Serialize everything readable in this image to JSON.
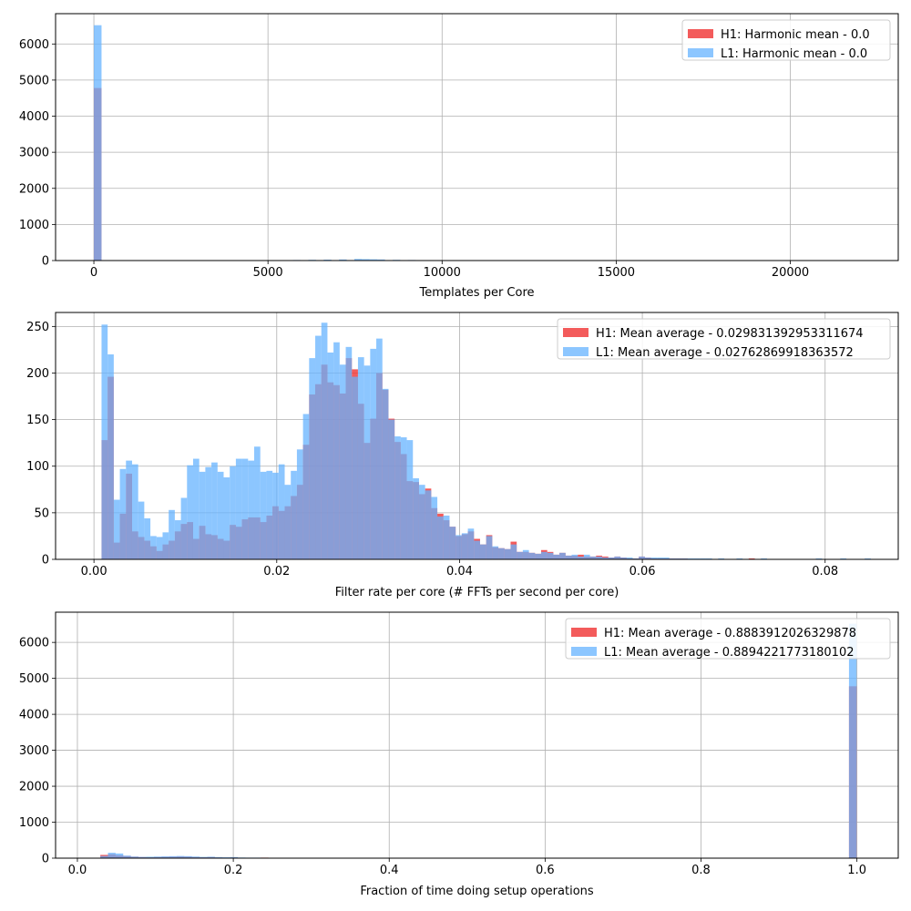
{
  "colors": {
    "h1": "#f03232",
    "l1": "#66b3ff",
    "grid": "#b0b0b0"
  },
  "chart_data": [
    {
      "type": "bar",
      "xlabel": "Templates per Core",
      "ylabel": "",
      "xlim": [
        -1100,
        23100
      ],
      "ylim": [
        0,
        6840
      ],
      "xticks": [
        0,
        5000,
        10000,
        15000,
        20000
      ],
      "xtick_labels": [
        "0",
        "5000",
        "10000",
        "15000",
        "20000"
      ],
      "yticks": [
        0,
        1000,
        2000,
        3000,
        4000,
        5000,
        6000
      ],
      "ytick_labels": [
        "0",
        "1000",
        "2000",
        "3000",
        "4000",
        "5000",
        "6000"
      ],
      "grid": true,
      "legend_position": "top-right",
      "bin_width": 220,
      "series": [
        {
          "name": "H1: Harmonic mean  - 0.0",
          "color_key": "h1",
          "bins": [
            {
              "x": 0,
              "y": 4780
            }
          ]
        },
        {
          "name": "L1: Harmonic mean  - 0.0",
          "color_key": "l1",
          "bins": [
            {
              "x": 0,
              "y": 6520
            },
            {
              "x": 2860,
              "y": 10
            },
            {
              "x": 3080,
              "y": 12
            },
            {
              "x": 5280,
              "y": 10
            },
            {
              "x": 5720,
              "y": 15
            },
            {
              "x": 6160,
              "y": 20
            },
            {
              "x": 6600,
              "y": 25
            },
            {
              "x": 7040,
              "y": 30
            },
            {
              "x": 7480,
              "y": 45
            },
            {
              "x": 7700,
              "y": 40
            },
            {
              "x": 7920,
              "y": 35
            },
            {
              "x": 8140,
              "y": 30
            },
            {
              "x": 8580,
              "y": 20
            },
            {
              "x": 9020,
              "y": 15
            },
            {
              "x": 9240,
              "y": 10
            }
          ]
        }
      ]
    },
    {
      "type": "bar",
      "xlabel": "Filter rate per core (# FFTs per second per core)",
      "ylabel": "",
      "xlim": [
        -0.0042,
        0.088
      ],
      "ylim": [
        0,
        265
      ],
      "xticks": [
        0,
        0.02,
        0.04,
        0.06,
        0.08
      ],
      "xtick_labels": [
        "0.00",
        "0.02",
        "0.04",
        "0.06",
        "0.08"
      ],
      "yticks": [
        0,
        50,
        100,
        150,
        200,
        250
      ],
      "ytick_labels": [
        "0",
        "50",
        "100",
        "150",
        "200",
        "250"
      ],
      "grid": true,
      "legend_position": "top-right",
      "bin_start": 0.00083,
      "bin_width": 0.000668,
      "series": [
        {
          "name": "H1: Mean average - 0.029831392953311674",
          "color_key": "h1",
          "values": [
            128,
            196,
            18,
            49,
            92,
            30,
            24,
            20,
            14,
            9,
            16,
            20,
            30,
            38,
            40,
            22,
            36,
            27,
            26,
            22,
            20,
            37,
            35,
            43,
            45,
            45,
            40,
            47,
            57,
            52,
            57,
            68,
            80,
            123,
            177,
            188,
            209,
            190,
            187,
            178,
            216,
            204,
            167,
            125,
            151,
            200,
            182,
            151,
            126,
            113,
            84,
            83,
            70,
            76,
            55,
            49,
            42,
            35,
            25,
            27,
            30,
            22,
            16,
            26,
            13,
            12,
            11,
            19,
            8,
            8,
            7,
            6,
            10,
            8,
            5,
            7,
            4,
            4,
            5,
            3,
            3,
            4,
            3,
            2,
            3,
            2,
            1,
            1,
            3,
            2,
            1,
            1,
            1,
            1,
            1,
            1,
            0,
            0,
            0,
            0,
            0,
            0,
            0,
            0,
            0,
            0,
            1,
            0,
            0,
            0,
            0,
            0,
            0,
            0,
            0,
            0,
            0,
            0,
            0,
            0,
            0,
            0,
            0,
            0,
            0,
            0
          ]
        },
        {
          "name": "L1: Mean average - 0.02762869918363572",
          "color_key": "l1",
          "values": [
            252,
            220,
            64,
            97,
            106,
            102,
            62,
            44,
            25,
            24,
            29,
            53,
            42,
            66,
            101,
            108,
            94,
            99,
            104,
            94,
            88,
            100,
            108,
            108,
            106,
            121,
            94,
            95,
            93,
            102,
            80,
            95,
            118,
            156,
            216,
            240,
            254,
            222,
            233,
            209,
            228,
            196,
            217,
            208,
            226,
            237,
            183,
            150,
            132,
            131,
            128,
            87,
            80,
            74,
            67,
            46,
            47,
            35,
            26,
            28,
            33,
            20,
            16,
            25,
            14,
            12,
            11,
            16,
            8,
            10,
            7,
            6,
            8,
            7,
            5,
            7,
            4,
            5,
            3,
            5,
            3,
            3,
            2,
            2,
            3,
            2,
            2,
            1,
            3,
            2,
            2,
            2,
            2,
            1,
            1,
            1,
            1,
            1,
            1,
            1,
            0,
            1,
            0,
            0,
            1,
            0,
            0,
            0,
            1,
            0,
            0,
            0,
            0,
            0,
            0,
            0,
            0,
            1,
            0,
            0,
            0,
            1,
            0,
            0,
            0,
            1
          ]
        }
      ]
    },
    {
      "type": "bar",
      "xlabel": "Fraction of time doing setup operations",
      "ylabel": "",
      "xlim": [
        -0.028,
        1.053
      ],
      "ylim": [
        0,
        6840
      ],
      "xticks": [
        0,
        0.2,
        0.4,
        0.6,
        0.8,
        1.0
      ],
      "xtick_labels": [
        "0.0",
        "0.2",
        "0.4",
        "0.6",
        "0.8",
        "1.0"
      ],
      "yticks": [
        0,
        1000,
        2000,
        3000,
        4000,
        5000,
        6000
      ],
      "ytick_labels": [
        "0",
        "1000",
        "2000",
        "3000",
        "4000",
        "5000",
        "6000"
      ],
      "grid": true,
      "legend_position": "top-right",
      "bin_width": 0.0098,
      "series": [
        {
          "name": "H1: Mean average - 0.8883912026329878",
          "color_key": "h1",
          "bins": [
            {
              "x": 0.0294,
              "y": 90
            },
            {
              "x": 0.0392,
              "y": 110
            },
            {
              "x": 0.049,
              "y": 80
            },
            {
              "x": 0.0588,
              "y": 60
            },
            {
              "x": 0.0686,
              "y": 40
            },
            {
              "x": 0.0784,
              "y": 30
            },
            {
              "x": 0.0882,
              "y": 25
            },
            {
              "x": 0.098,
              "y": 30
            },
            {
              "x": 0.1078,
              "y": 35
            },
            {
              "x": 0.1176,
              "y": 40
            },
            {
              "x": 0.1274,
              "y": 45
            },
            {
              "x": 0.1372,
              "y": 40
            },
            {
              "x": 0.147,
              "y": 30
            },
            {
              "x": 0.1568,
              "y": 25
            },
            {
              "x": 0.1666,
              "y": 30
            },
            {
              "x": 0.1764,
              "y": 20
            },
            {
              "x": 0.1862,
              "y": 15
            },
            {
              "x": 0.196,
              "y": 20
            },
            {
              "x": 0.2058,
              "y": 12
            },
            {
              "x": 0.2156,
              "y": 10
            },
            {
              "x": 0.2254,
              "y": 12
            },
            {
              "x": 0.2352,
              "y": 15
            },
            {
              "x": 0.245,
              "y": 10
            },
            {
              "x": 0.2548,
              "y": 8
            },
            {
              "x": 0.2646,
              "y": 10
            },
            {
              "x": 0.2842,
              "y": 6
            },
            {
              "x": 0.9898,
              "y": 4780
            }
          ]
        },
        {
          "name": "L1: Mean average - 0.8894221773180102",
          "color_key": "l1",
          "bins": [
            {
              "x": 0.0294,
              "y": 60
            },
            {
              "x": 0.0392,
              "y": 150
            },
            {
              "x": 0.049,
              "y": 130
            },
            {
              "x": 0.0588,
              "y": 70
            },
            {
              "x": 0.0686,
              "y": 45
            },
            {
              "x": 0.0784,
              "y": 35
            },
            {
              "x": 0.0882,
              "y": 40
            },
            {
              "x": 0.098,
              "y": 45
            },
            {
              "x": 0.1078,
              "y": 50
            },
            {
              "x": 0.1176,
              "y": 55
            },
            {
              "x": 0.1274,
              "y": 60
            },
            {
              "x": 0.1372,
              "y": 55
            },
            {
              "x": 0.147,
              "y": 45
            },
            {
              "x": 0.1568,
              "y": 35
            },
            {
              "x": 0.1666,
              "y": 40
            },
            {
              "x": 0.1764,
              "y": 30
            },
            {
              "x": 0.1862,
              "y": 25
            },
            {
              "x": 0.196,
              "y": 30
            },
            {
              "x": 0.2058,
              "y": 18
            },
            {
              "x": 0.2156,
              "y": 15
            },
            {
              "x": 0.2254,
              "y": 15
            },
            {
              "x": 0.2352,
              "y": 12
            },
            {
              "x": 0.245,
              "y": 12
            },
            {
              "x": 0.2548,
              "y": 10
            },
            {
              "x": 0.2646,
              "y": 12
            },
            {
              "x": 0.2744,
              "y": 8
            },
            {
              "x": 0.2842,
              "y": 8
            },
            {
              "x": 0.9898,
              "y": 6520
            }
          ]
        }
      ]
    }
  ]
}
